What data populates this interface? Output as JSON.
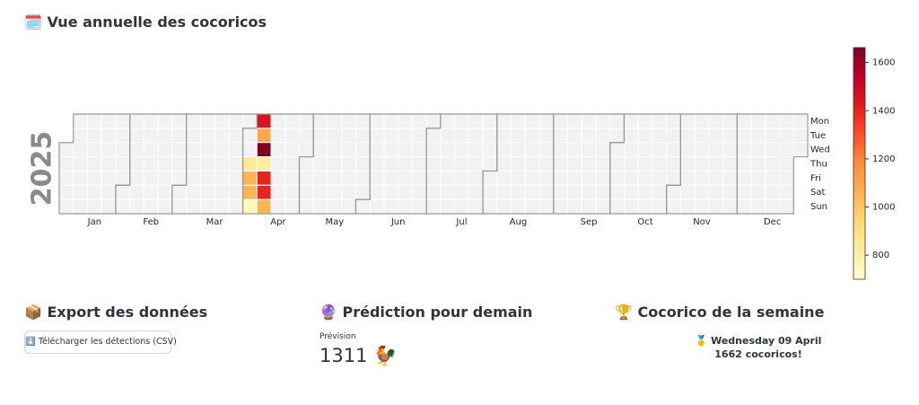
{
  "header": {
    "title": "🗓️ Vue annuelle des cocoricos"
  },
  "chart_data": {
    "type": "calendar_heatmap",
    "year": "2025",
    "months": [
      "Jan",
      "Feb",
      "Mar",
      "Apr",
      "May",
      "Jun",
      "Jul",
      "Aug",
      "Sep",
      "Oct",
      "Nov",
      "Dec"
    ],
    "weekdays": [
      "Mon",
      "Tue",
      "Wed",
      "Thu",
      "Fri",
      "Sat",
      "Sun"
    ],
    "x": [
      "2025-04-03",
      "2025-04-04",
      "2025-04-05",
      "2025-04-06",
      "2025-04-07",
      "2025-04-08",
      "2025-04-09",
      "2025-04-10",
      "2025-04-11",
      "2025-04-12",
      "2025-04-13"
    ],
    "values": [
      850,
      1050,
      1050,
      750,
      1450,
      1100,
      1662,
      820,
      1400,
      1400,
      1050
    ],
    "clim": [
      700,
      1662
    ],
    "cticks": [
      800,
      1000,
      1200,
      1400,
      1600
    ],
    "colormap": [
      "#ffffcc",
      "#ffeda0",
      "#fed976",
      "#feb24c",
      "#fd8d3c",
      "#fc4e2a",
      "#e31a1c",
      "#bd0026",
      "#800026"
    ],
    "empty_color": "#f2f2f2",
    "border_color": "#999999"
  },
  "export": {
    "title": "📦 Export des données",
    "button": "⬇️ Télécharger les détections (CSV)"
  },
  "prediction": {
    "title": "🔮 Prédiction pour demain",
    "label": "Prévision",
    "value": "1311 🐓"
  },
  "best": {
    "title": "🏆 Cocorico de la semaine",
    "line1": "🥇 Wednesday 09 April",
    "line2": "1662 cocoricos!"
  }
}
